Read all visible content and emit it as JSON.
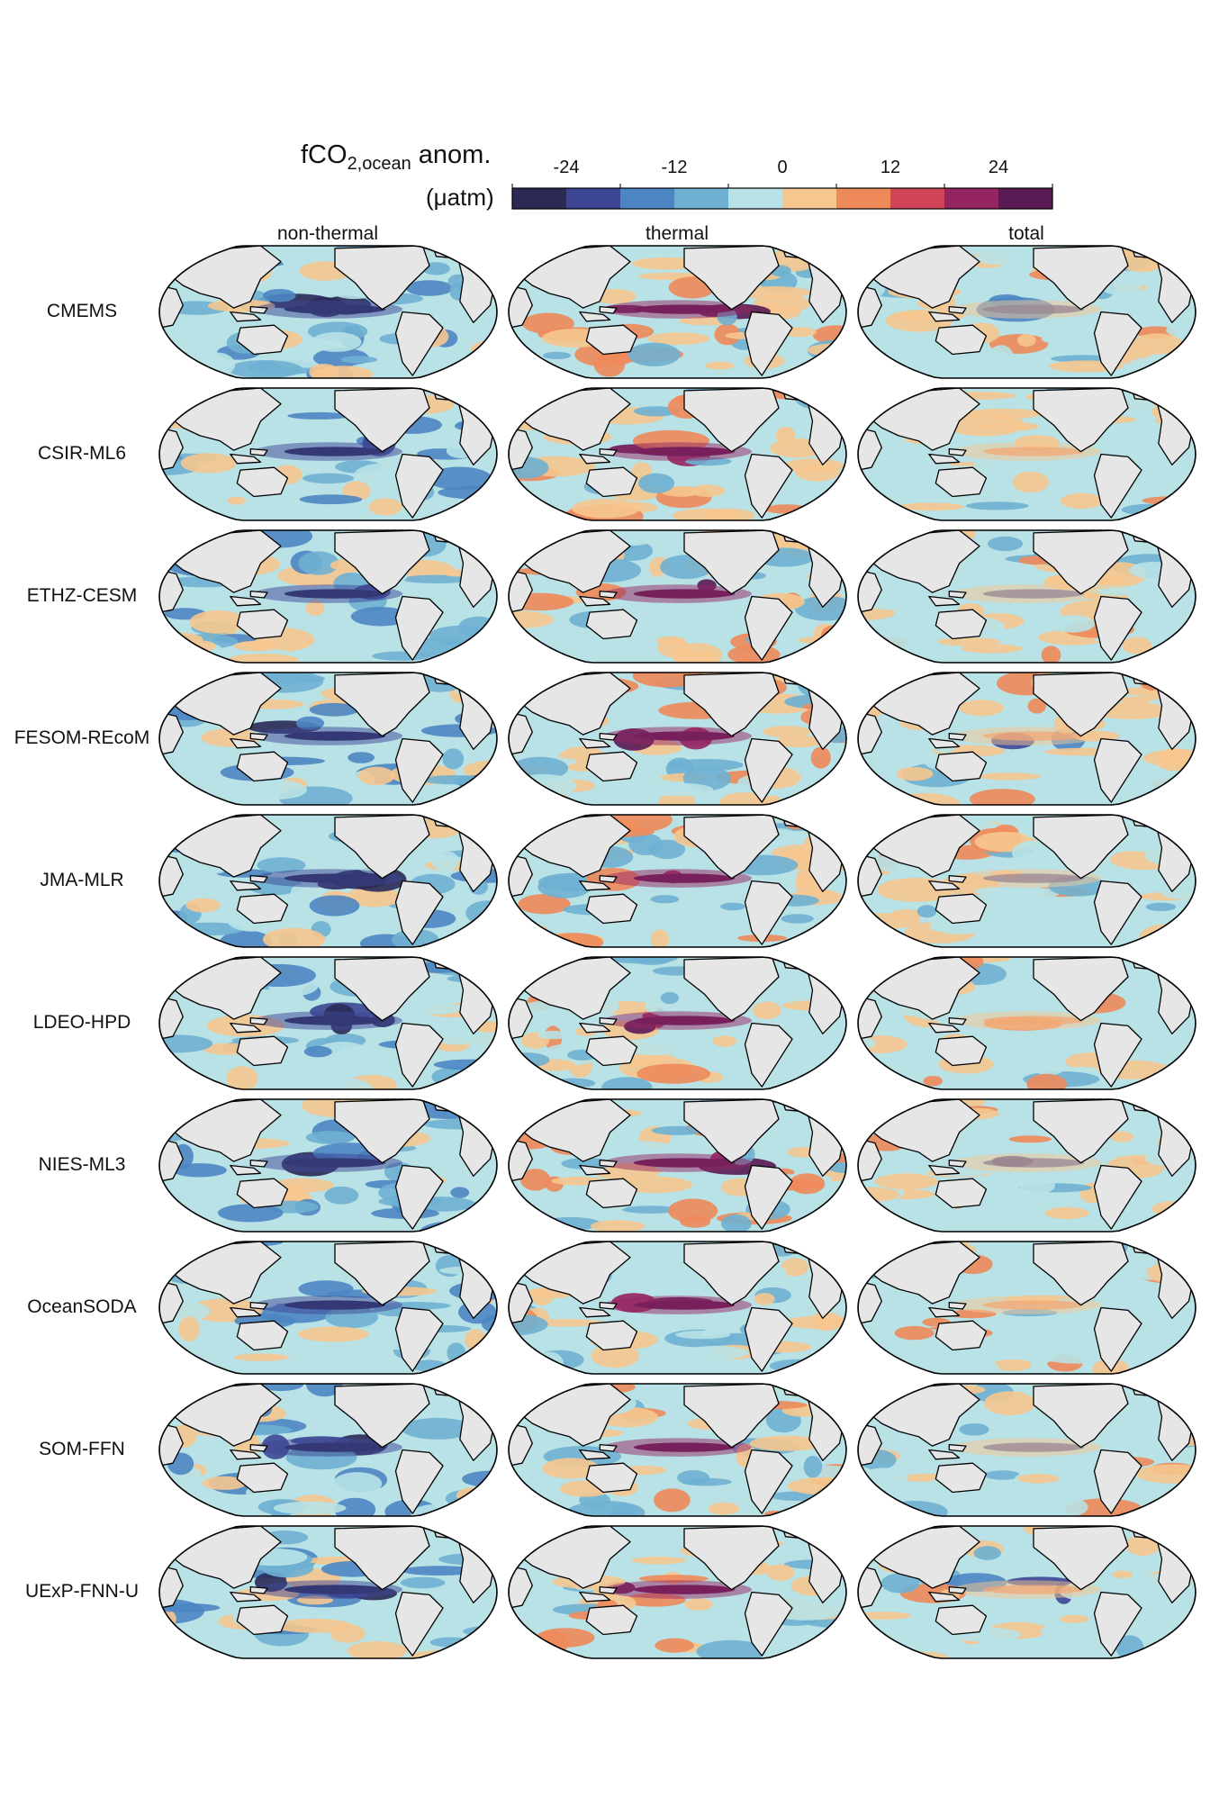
{
  "colorbar": {
    "title_main": "fCO",
    "title_sub": "2,ocean",
    "title_tail": " anom.",
    "unit": "(μatm)",
    "ticks": [
      "-24",
      "-12",
      "0",
      "12",
      "24"
    ],
    "colors": [
      "#2a2a55",
      "#3d4693",
      "#4c86c2",
      "#6fb0d2",
      "#b8e2e6",
      "#f6c68f",
      "#ee8a5a",
      "#cf4557",
      "#952561",
      "#5a1a55"
    ]
  },
  "columns": [
    "non-thermal",
    "thermal",
    "total"
  ],
  "rows": [
    "CMEMS",
    "CSIR-ML6",
    "ETHZ-CESM",
    "FESOM-REcoM",
    "JMA-MLR",
    "LDEO-HPD",
    "NIES-ML3",
    "OceanSODA",
    "SOM-FFN",
    "UExP-FNN-U"
  ],
  "map_style": {
    "land": "#e6e6e6",
    "outline": "#000000",
    "column_bias": [
      "negative-equatorial-pacific",
      "positive-equatorial-pacific",
      "weak-mixed"
    ]
  }
}
